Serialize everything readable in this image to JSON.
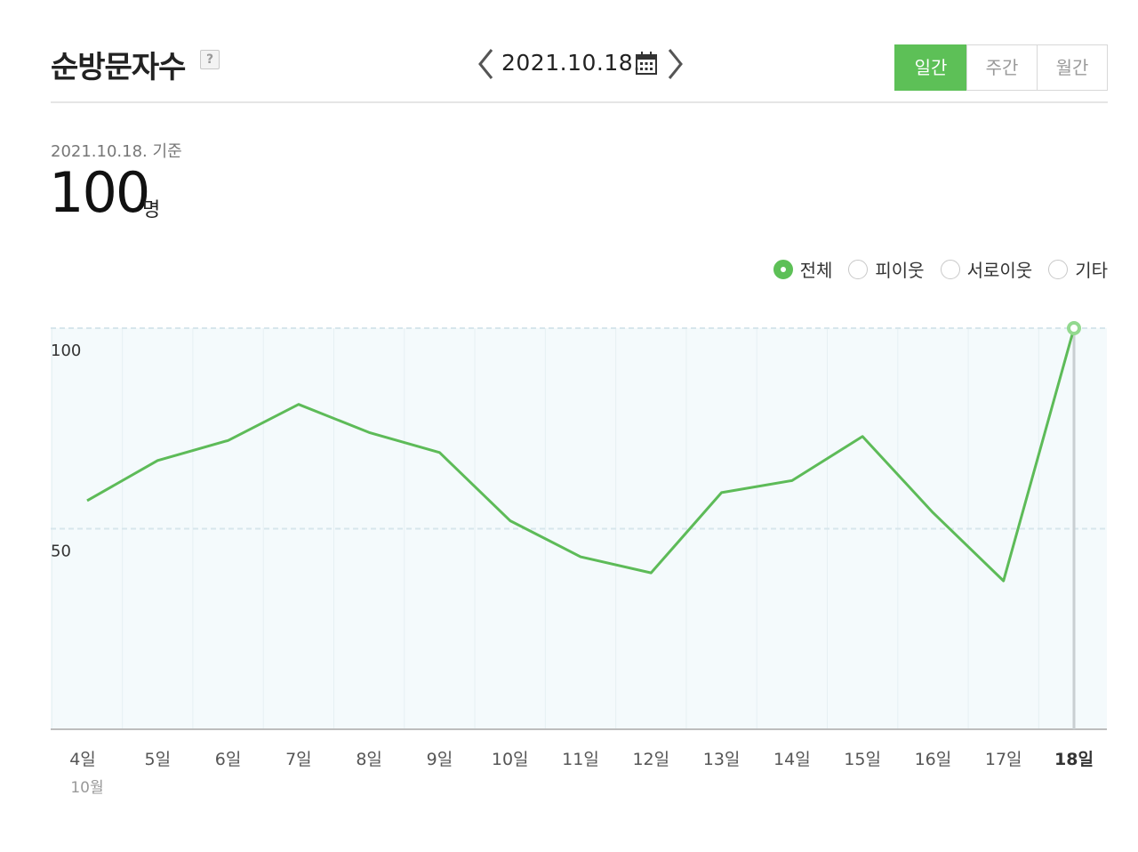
{
  "header": {
    "title": "순방문자수",
    "help_icon": "question-icon",
    "date": "2021.10.18.",
    "period_tabs": [
      {
        "label": "일간",
        "active": true
      },
      {
        "label": "주간",
        "active": false
      },
      {
        "label": "월간",
        "active": false
      }
    ]
  },
  "summary": {
    "basis": "2021.10.18. 기준",
    "value": "100",
    "unit": "명"
  },
  "filters": [
    {
      "label": "전체",
      "checked": true
    },
    {
      "label": "피이웃",
      "checked": false
    },
    {
      "label": "서로이웃",
      "checked": false
    },
    {
      "label": "기타",
      "checked": false
    }
  ],
  "colors": {
    "accent": "#5dc057",
    "line": "#5dbb58",
    "plot_bg": "#f4fafc",
    "grid": "#d7e6ec"
  },
  "chart_data": {
    "type": "line",
    "categories": [
      "4일",
      "5일",
      "6일",
      "7일",
      "8일",
      "9일",
      "10일",
      "11일",
      "12일",
      "13일",
      "14일",
      "15일",
      "16일",
      "17일",
      "18일"
    ],
    "month_label": "10월",
    "series": [
      {
        "values": [
          57,
          67,
          72,
          81,
          74,
          69,
          52,
          43,
          39,
          59,
          62,
          73,
          54,
          37,
          100
        ]
      }
    ],
    "yticks": [
      100,
      50
    ],
    "ylim": [
      0,
      100
    ],
    "highlight_index": 14,
    "grid": true
  }
}
